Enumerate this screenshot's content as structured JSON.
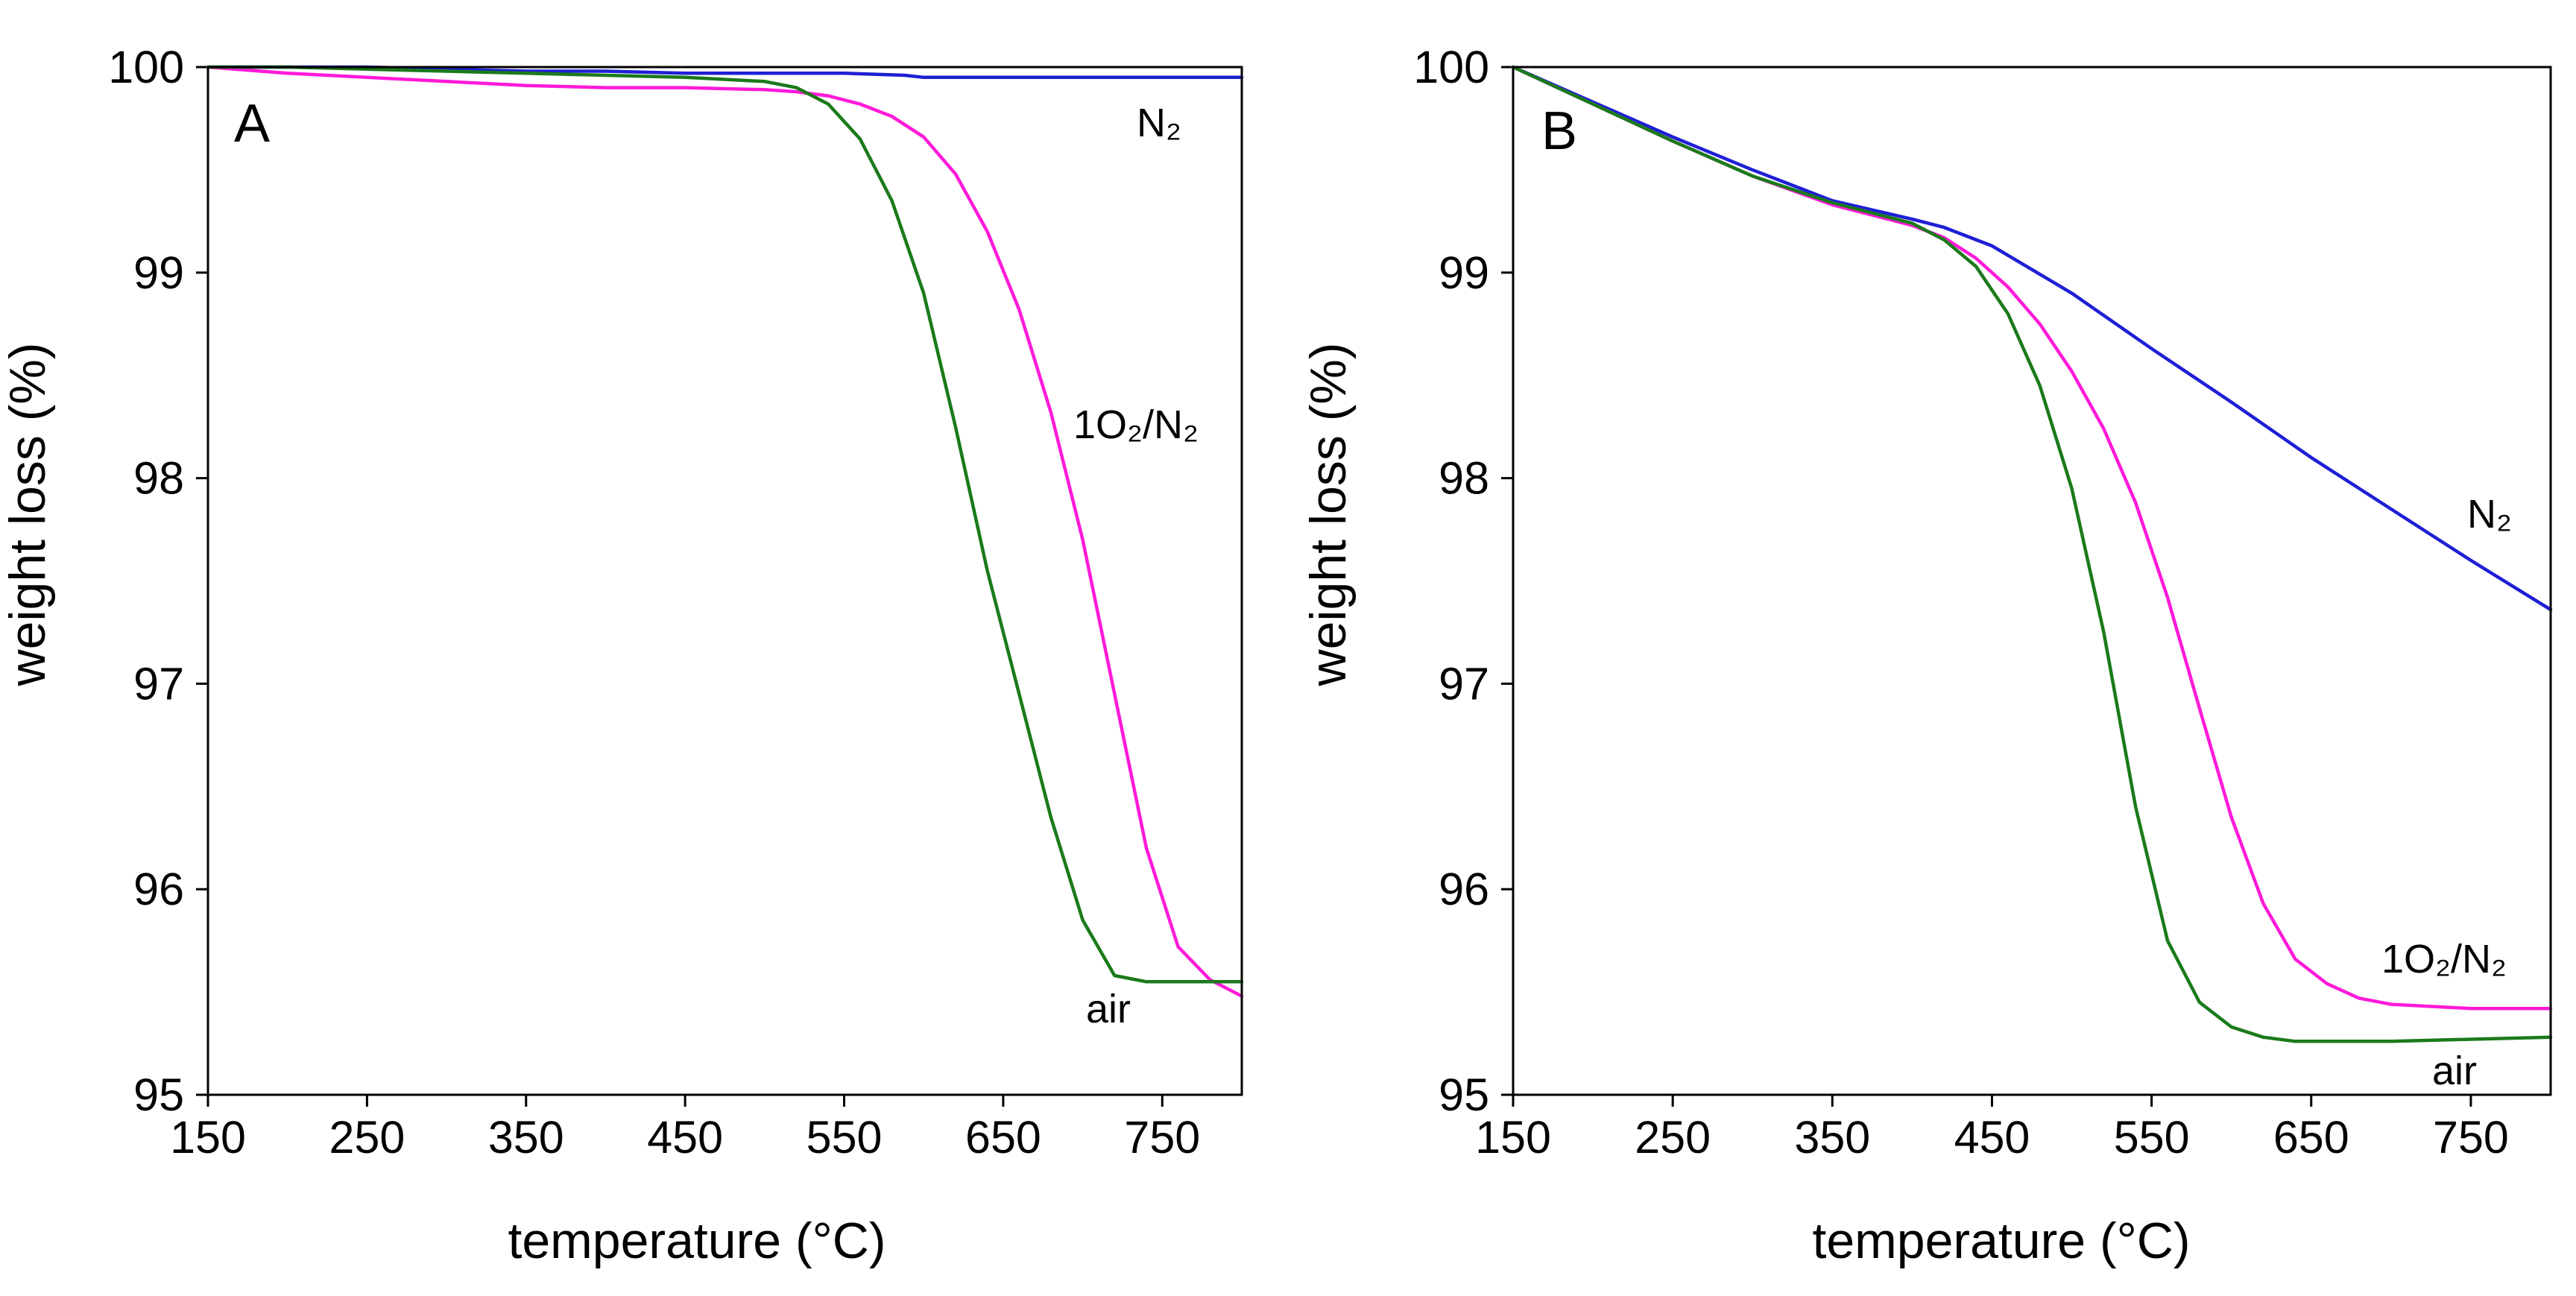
{
  "chart_data": [
    {
      "type": "line",
      "panel_label": "A",
      "xlabel": "temperature (°C)",
      "ylabel": "weight loss (%)",
      "xlim": [
        150,
        800
      ],
      "ylim": [
        95,
        100
      ],
      "xticks": [
        150,
        250,
        350,
        450,
        550,
        650,
        750
      ],
      "yticks": [
        95,
        96,
        97,
        98,
        99,
        100
      ],
      "grid": false,
      "series": [
        {
          "name": "N2",
          "label": "N₂",
          "color": "#1f1fd6",
          "x": [
            150,
            200,
            250,
            300,
            350,
            400,
            450,
            500,
            550,
            588,
            600,
            650,
            700,
            750,
            800
          ],
          "y": [
            100.0,
            100.0,
            100.0,
            99.99,
            99.98,
            99.98,
            99.97,
            99.97,
            99.97,
            99.96,
            99.95,
            99.95,
            99.95,
            99.95,
            99.95
          ]
        },
        {
          "name": "1O2/N2",
          "label": "1O₂/N₂",
          "color": "#ff1ad9",
          "x": [
            150,
            200,
            250,
            300,
            350,
            400,
            450,
            500,
            520,
            540,
            560,
            580,
            600,
            620,
            640,
            660,
            680,
            700,
            720,
            740,
            760,
            780,
            800
          ],
          "y": [
            100.0,
            99.97,
            99.95,
            99.93,
            99.91,
            99.9,
            99.9,
            99.89,
            99.88,
            99.86,
            99.82,
            99.76,
            99.66,
            99.48,
            99.2,
            98.82,
            98.32,
            97.7,
            96.95,
            96.2,
            95.72,
            95.56,
            95.48
          ]
        },
        {
          "name": "air",
          "label": "air",
          "color": "#1a7a1a",
          "x": [
            150,
            200,
            250,
            300,
            350,
            400,
            450,
            500,
            520,
            540,
            560,
            580,
            600,
            620,
            640,
            660,
            680,
            700,
            720,
            740,
            760,
            780,
            800
          ],
          "y": [
            100.0,
            100.0,
            99.99,
            99.98,
            99.97,
            99.96,
            99.95,
            99.93,
            99.9,
            99.82,
            99.65,
            99.35,
            98.9,
            98.25,
            97.55,
            96.95,
            96.35,
            95.85,
            95.58,
            95.55,
            95.55,
            95.55,
            95.55
          ]
        }
      ]
    },
    {
      "type": "line",
      "panel_label": "B",
      "xlabel": "temperature (°C)",
      "ylabel": "weight loss (%)",
      "xlim": [
        150,
        800
      ],
      "ylim": [
        95,
        100
      ],
      "xticks": [
        150,
        250,
        350,
        450,
        550,
        650,
        750
      ],
      "yticks": [
        95,
        96,
        97,
        98,
        99,
        100
      ],
      "grid": false,
      "series": [
        {
          "name": "N2",
          "label": "N₂",
          "color": "#1f1fd6",
          "x": [
            150,
            200,
            250,
            300,
            350,
            400,
            420,
            450,
            500,
            550,
            600,
            650,
            700,
            750,
            800
          ],
          "y": [
            100.0,
            99.83,
            99.66,
            99.5,
            99.35,
            99.26,
            99.22,
            99.13,
            98.9,
            98.63,
            98.37,
            98.1,
            97.85,
            97.6,
            97.36
          ]
        },
        {
          "name": "1O2/N2",
          "label": "1O₂/N₂",
          "color": "#ff1ad9",
          "x": [
            150,
            200,
            250,
            300,
            350,
            400,
            420,
            440,
            460,
            480,
            500,
            520,
            540,
            560,
            580,
            600,
            620,
            640,
            660,
            680,
            700,
            750,
            800
          ],
          "y": [
            100.0,
            99.82,
            99.64,
            99.47,
            99.33,
            99.23,
            99.17,
            99.07,
            98.93,
            98.75,
            98.52,
            98.24,
            97.88,
            97.42,
            96.88,
            96.35,
            95.93,
            95.66,
            95.54,
            95.47,
            95.44,
            95.42,
            95.42
          ]
        },
        {
          "name": "air",
          "label": "air",
          "color": "#1a7a1a",
          "x": [
            150,
            200,
            250,
            300,
            350,
            400,
            420,
            440,
            460,
            480,
            500,
            520,
            540,
            560,
            580,
            600,
            620,
            640,
            660,
            700,
            750,
            800
          ],
          "y": [
            100.0,
            99.82,
            99.64,
            99.47,
            99.34,
            99.24,
            99.16,
            99.03,
            98.8,
            98.45,
            97.95,
            97.25,
            96.4,
            95.75,
            95.45,
            95.33,
            95.28,
            95.26,
            95.26,
            95.26,
            95.27,
            95.28
          ]
        }
      ]
    }
  ]
}
